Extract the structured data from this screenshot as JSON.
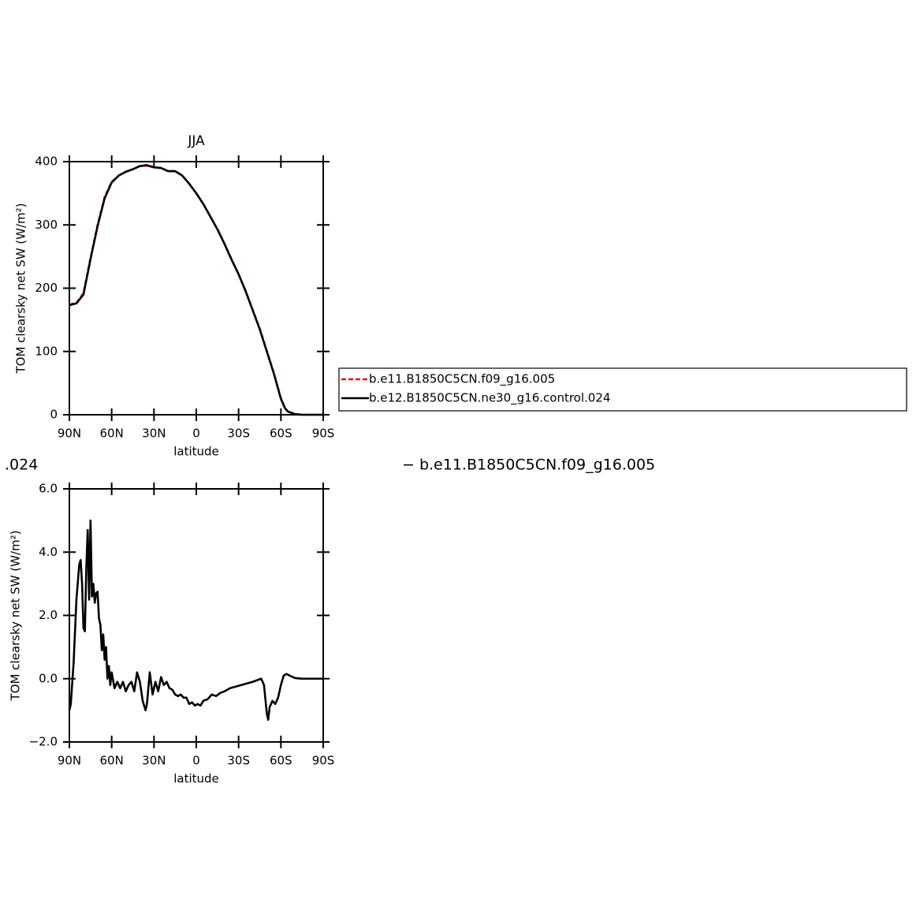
{
  "chart_data": [
    {
      "type": "line",
      "title": "JJA",
      "xlabel": "latitude",
      "ylabel": "TOM clearsky net SW (W/m²)",
      "x": [
        90,
        85,
        80,
        75,
        70,
        65,
        60,
        55,
        50,
        45,
        40,
        35,
        30,
        25,
        20,
        15,
        10,
        5,
        0,
        -5,
        -10,
        -15,
        -20,
        -25,
        -30,
        -35,
        -40,
        -45,
        -50,
        -55,
        -60,
        -63,
        -65,
        -70,
        -75,
        -80,
        -85,
        -90
      ],
      "xlim": [
        90,
        -90
      ],
      "xticks": [
        {
          "value": 90,
          "label": "90N"
        },
        {
          "value": 60,
          "label": "60N"
        },
        {
          "value": 30,
          "label": "30N"
        },
        0,
        {
          "value": -30,
          "label": "30S"
        },
        {
          "value": -60,
          "label": "60S"
        },
        {
          "value": -90,
          "label": "90S"
        }
      ],
      "ylim": [
        0,
        400
      ],
      "yticks": [
        0,
        100,
        200,
        300,
        400
      ],
      "legend": "right",
      "series": [
        {
          "name": "b.e11.B1850C5CN.f09_g16.005",
          "color": "#e8160c",
          "dash": true,
          "values": [
            174,
            177,
            192,
            248,
            300,
            344,
            368,
            378,
            384,
            388,
            393,
            395,
            391,
            390,
            385,
            385,
            378,
            365,
            350,
            333,
            313,
            293,
            270,
            246,
            222,
            196,
            166,
            136,
            101,
            66,
            26,
            10,
            5,
            1,
            0,
            0,
            0,
            0
          ]
        },
        {
          "name": "b.e12.B1850C5CN.ne30_g16.control.024",
          "color": "#000000",
          "dash": false,
          "values": [
            173,
            176,
            190,
            246,
            298,
            342,
            367,
            378,
            384,
            388,
            393,
            394,
            391,
            390,
            385,
            385,
            378,
            365,
            350,
            333,
            313,
            293,
            270,
            245,
            222,
            195,
            165,
            135,
            100,
            65,
            25,
            10,
            5,
            1,
            0,
            0,
            0,
            0
          ]
        }
      ]
    },
    {
      "type": "line",
      "xlabel": "latitude",
      "ylabel": "TOM clearsky net SW (W/m²)",
      "annotations": [
        ".024",
        "− b.e11.B1850C5CN.f09_g16.005"
      ],
      "x": [
        90,
        89,
        87,
        85,
        83,
        82,
        81,
        80,
        79,
        78,
        77,
        76,
        75,
        74,
        73,
        72,
        71,
        70,
        69,
        68,
        67,
        66,
        65,
        64,
        63,
        62,
        61,
        60,
        58,
        56,
        54,
        52,
        50,
        48,
        46,
        44,
        42,
        40,
        38,
        36,
        35,
        33,
        31,
        29,
        27,
        25,
        23,
        21,
        19,
        17,
        15,
        13,
        11,
        9,
        7,
        5,
        3,
        1,
        -1,
        -3,
        -5,
        -8,
        -11,
        -14,
        -17,
        -20,
        -24,
        -28,
        -32,
        -36,
        -40,
        -43,
        -46,
        -48,
        -50,
        -51,
        -52,
        -54,
        -56,
        -58,
        -60,
        -62,
        -64,
        -66,
        -70,
        -75,
        -90
      ],
      "xlim": [
        90,
        -90
      ],
      "xticks": [
        {
          "value": 90,
          "label": "90N"
        },
        {
          "value": 60,
          "label": "60N"
        },
        {
          "value": 30,
          "label": "30N"
        },
        0,
        {
          "value": -30,
          "label": "30S"
        },
        {
          "value": -60,
          "label": "60S"
        },
        {
          "value": -90,
          "label": "90S"
        }
      ],
      "ylim": [
        -2,
        6
      ],
      "yticks": [
        {
          "value": -2,
          "label": "−2.0"
        },
        {
          "value": 0,
          "label": "0.0"
        },
        {
          "value": 2,
          "label": "2.0"
        },
        {
          "value": 4,
          "label": "4.0"
        },
        {
          "value": 6,
          "label": "6.0"
        }
      ],
      "series": [
        {
          "color": "#000000",
          "dash": false,
          "values": [
            -1.0,
            -0.8,
            0.5,
            2.5,
            3.6,
            3.75,
            3.0,
            1.6,
            1.5,
            3.5,
            4.7,
            2.5,
            5.0,
            2.6,
            3.0,
            2.4,
            2.7,
            2.75,
            1.9,
            1.7,
            0.9,
            1.4,
            0.6,
            1.0,
            0.0,
            0.4,
            -0.2,
            0.2,
            -0.3,
            -0.1,
            -0.3,
            -0.1,
            -0.4,
            -0.2,
            -0.1,
            -0.4,
            0.2,
            -0.1,
            -0.7,
            -1.0,
            -0.8,
            0.2,
            -0.5,
            -0.1,
            -0.4,
            0.05,
            -0.2,
            -0.1,
            -0.3,
            -0.35,
            -0.5,
            -0.55,
            -0.5,
            -0.6,
            -0.6,
            -0.8,
            -0.75,
            -0.85,
            -0.8,
            -0.85,
            -0.7,
            -0.65,
            -0.5,
            -0.55,
            -0.45,
            -0.4,
            -0.3,
            -0.25,
            -0.2,
            -0.15,
            -0.1,
            -0.05,
            0.0,
            -0.2,
            -1.1,
            -1.3,
            -0.9,
            -0.7,
            -0.8,
            -0.6,
            -0.2,
            0.1,
            0.15,
            0.1,
            0.02,
            0.0,
            0.0
          ]
        }
      ]
    }
  ]
}
